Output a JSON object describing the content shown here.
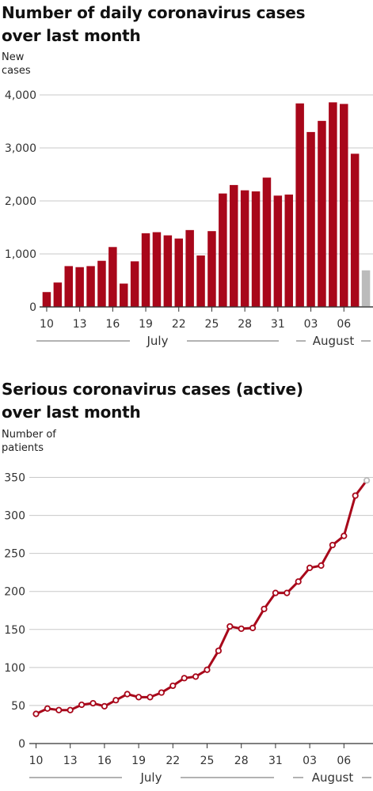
{
  "chart_data": [
    {
      "type": "bar",
      "title_lines": [
        "Number of daily coronavirus cases",
        "over last month"
      ],
      "ylabel_lines": [
        "New",
        "cases"
      ],
      "ylim": [
        0,
        4000
      ],
      "yticks": [
        0,
        1000,
        2000,
        3000,
        4000
      ],
      "ytick_labels": [
        "0",
        "1,000",
        "2,000",
        "3,000",
        "4,000"
      ],
      "categories": [
        "10 Jul",
        "11 Jul",
        "12 Jul",
        "13 Jul",
        "14 Jul",
        "15 Jul",
        "16 Jul",
        "17 Jul",
        "18 Jul",
        "19 Jul",
        "20 Jul",
        "21 Jul",
        "22 Jul",
        "23 Jul",
        "24 Jul",
        "25 Jul",
        "26 Jul",
        "27 Jul",
        "28 Jul",
        "29 Jul",
        "30 Jul",
        "31 Jul",
        "01 Aug",
        "02 Aug",
        "03 Aug",
        "04 Aug",
        "05 Aug",
        "06 Aug",
        "07 Aug",
        "08 Aug"
      ],
      "values": [
        280,
        460,
        770,
        750,
        770,
        870,
        1130,
        440,
        860,
        1390,
        1410,
        1350,
        1290,
        1450,
        970,
        1430,
        2140,
        2300,
        2200,
        2180,
        2440,
        2100,
        2120,
        3840,
        3300,
        3510,
        3860,
        3830,
        2890,
        690
      ],
      "provisional_from_index": 29,
      "xtick_labels": [
        "10",
        "13",
        "16",
        "19",
        "22",
        "25",
        "28",
        "31",
        "03",
        "06"
      ],
      "xtick_positions": [
        0,
        3,
        6,
        9,
        12,
        15,
        18,
        21,
        24,
        27
      ],
      "months": [
        "July",
        "August"
      ],
      "colors": {
        "bar": "#a8071a",
        "provisional": "#bbbbbb",
        "grid": "#c8c8c8",
        "axis": "#333333"
      },
      "grid": true
    },
    {
      "type": "line",
      "title_lines": [
        "Serious coronavirus cases (active)",
        "over last month"
      ],
      "ylabel_lines": [
        "Number of",
        "patients"
      ],
      "ylim": [
        0,
        350
      ],
      "yticks": [
        0,
        50,
        100,
        150,
        200,
        250,
        300,
        350
      ],
      "ytick_labels": [
        "0",
        "50",
        "100",
        "150",
        "200",
        "250",
        "300",
        "350"
      ],
      "categories": [
        "10 Jul",
        "11 Jul",
        "12 Jul",
        "13 Jul",
        "14 Jul",
        "15 Jul",
        "16 Jul",
        "17 Jul",
        "18 Jul",
        "19 Jul",
        "20 Jul",
        "21 Jul",
        "22 Jul",
        "23 Jul",
        "24 Jul",
        "25 Jul",
        "26 Jul",
        "27 Jul",
        "28 Jul",
        "29 Jul",
        "30 Jul",
        "31 Jul",
        "01 Aug",
        "02 Aug",
        "03 Aug",
        "04 Aug",
        "05 Aug",
        "06 Aug",
        "07 Aug",
        "08 Aug"
      ],
      "values": [
        39,
        46,
        44,
        44,
        51,
        53,
        49,
        57,
        65,
        61,
        61,
        67,
        76,
        86,
        88,
        97,
        122,
        154,
        151,
        152,
        177,
        198,
        198,
        213,
        231,
        234,
        261,
        273,
        326,
        346
      ],
      "provisional_from_index": 29,
      "xtick_labels": [
        "10",
        "13",
        "16",
        "19",
        "22",
        "25",
        "28",
        "31",
        "03",
        "06"
      ],
      "xtick_positions": [
        0,
        3,
        6,
        9,
        12,
        15,
        18,
        21,
        24,
        27
      ],
      "months": [
        "July",
        "August"
      ],
      "colors": {
        "line": "#a8071a",
        "provisional": "#bbbbbb",
        "grid": "#c8c8c8",
        "axis": "#333333"
      },
      "grid": true
    }
  ]
}
